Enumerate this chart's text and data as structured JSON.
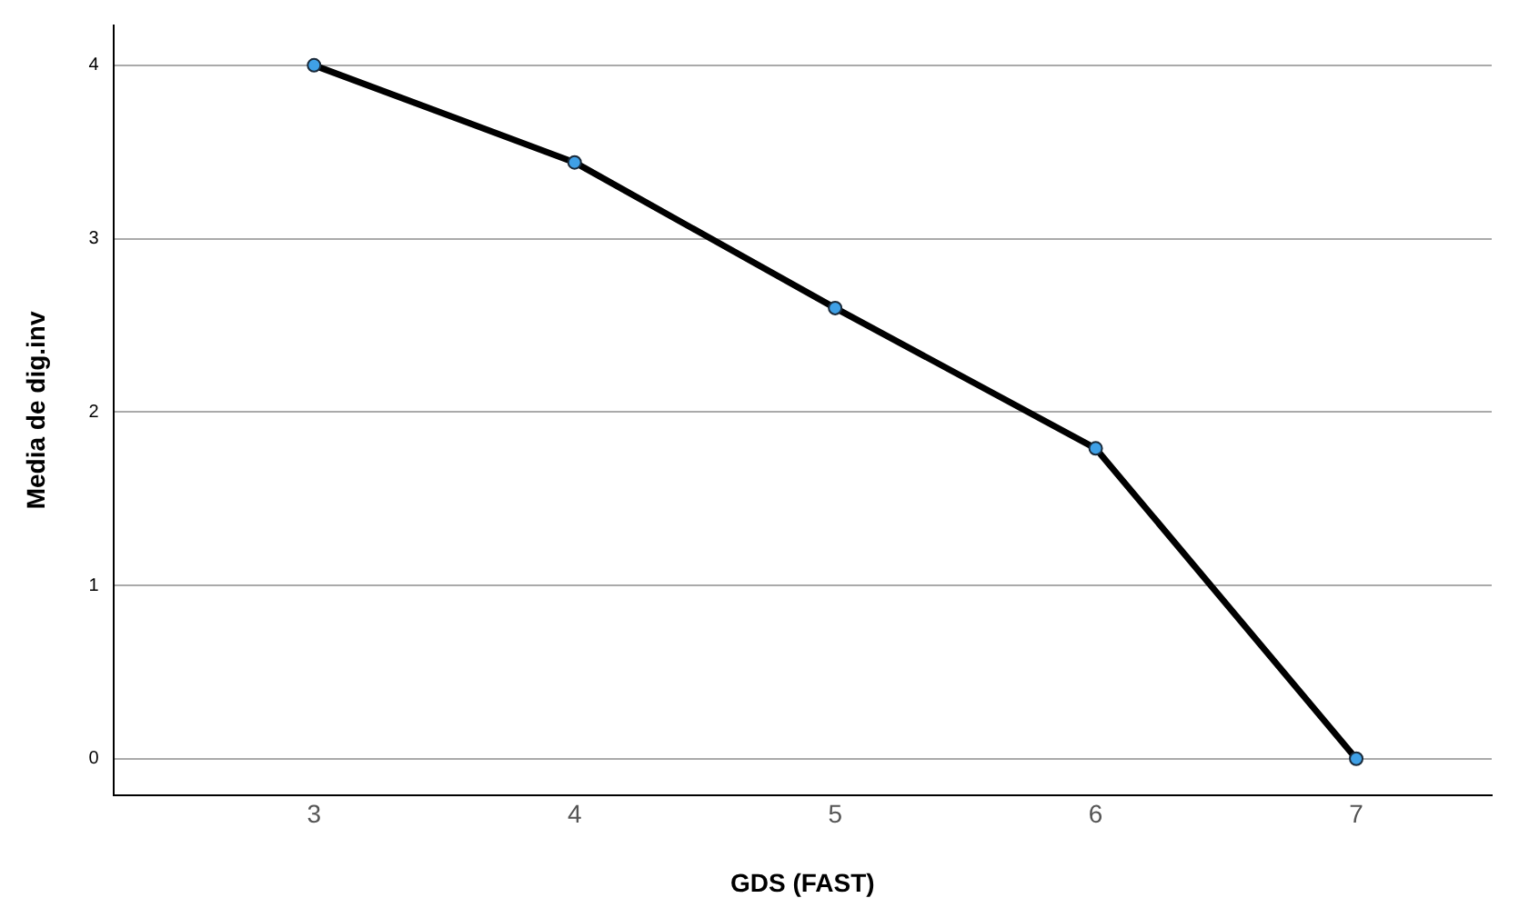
{
  "chart_data": {
    "type": "line",
    "xlabel": "GDS (FAST)",
    "ylabel": "Media de dig.inv",
    "x": [
      3,
      4,
      5,
      6,
      7
    ],
    "series": [
      {
        "color": "#000000",
        "values": [
          4,
          3.44,
          2.6,
          1.79,
          0
        ]
      }
    ],
    "xlim": [
      2.23,
      7.52
    ],
    "xticks": [
      3,
      4,
      5,
      6,
      7
    ],
    "ylim": [
      -0.21,
      4.23
    ],
    "yticks": [
      0,
      1,
      2,
      3,
      4
    ],
    "grid": "y",
    "marker": "circle",
    "legend": false
  }
}
